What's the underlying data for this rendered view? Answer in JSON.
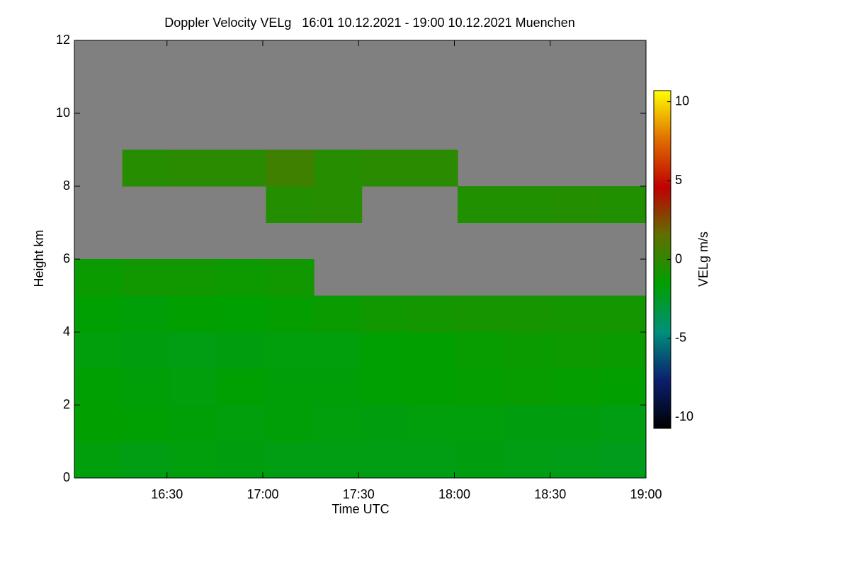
{
  "chart_data": {
    "type": "heatmap",
    "title": "Doppler Velocity VELg   16:01 10.12.2021 - 19:00 10.12.2021 Muenchen",
    "xlabel": "Time UTC",
    "ylabel": "Height km",
    "colorbar_label": "VELg m/s",
    "x": [
      "16:01",
      "16:16",
      "16:31",
      "16:46",
      "17:01",
      "17:16",
      "17:31",
      "17:46",
      "18:01",
      "18:16",
      "18:31",
      "18:46"
    ],
    "xlim": [
      "16:01",
      "19:00"
    ],
    "xticks": [
      "16:30",
      "17:00",
      "17:30",
      "18:00",
      "18:30",
      "19:00"
    ],
    "y": [
      0,
      1,
      2,
      3,
      4,
      5,
      6,
      7,
      8,
      9,
      10,
      11
    ],
    "ylim": [
      0,
      12
    ],
    "yticks": [
      0,
      2,
      4,
      6,
      8,
      10,
      12
    ],
    "values": [
      [
        -1.8,
        -2,
        -1.8,
        -1.9,
        -2,
        -2,
        -2,
        -2,
        -1.9,
        -2,
        -2.1,
        -2.2
      ],
      [
        -1.5,
        -1.6,
        -1.7,
        -1.8,
        -1.7,
        -1.8,
        -1.9,
        -1.8,
        -1.8,
        -1.9,
        -1.9,
        -2
      ],
      [
        -1.6,
        -1.7,
        -1.8,
        -1.6,
        -1.7,
        -1.7,
        -1.6,
        -1.5,
        -1.4,
        -1.3,
        -1.4,
        -1.5
      ],
      [
        -1.8,
        -1.9,
        -2,
        -1.9,
        -1.8,
        -1.8,
        -1.6,
        -1.5,
        -1.3,
        -1.2,
        -1.1,
        -1.2
      ],
      [
        -1.6,
        -1.7,
        -1.5,
        -1.6,
        -1.4,
        -1.2,
        -1,
        -0.9,
        -0.8,
        -0.8,
        -0.9,
        -0.9
      ],
      [
        -1.2,
        -1,
        -1,
        -1.1,
        -1,
        null,
        null,
        null,
        null,
        null,
        null,
        null
      ],
      [
        null,
        null,
        null,
        null,
        null,
        null,
        null,
        null,
        null,
        null,
        null,
        null
      ],
      [
        null,
        null,
        null,
        null,
        -0.4,
        -0.3,
        null,
        null,
        -0.5,
        -0.5,
        -0.4,
        -0.5
      ],
      [
        null,
        -0.3,
        -0.2,
        -0.2,
        0.5,
        -0.3,
        -0.2,
        -0.2,
        null,
        null,
        null,
        null
      ],
      [
        null,
        null,
        null,
        null,
        null,
        null,
        null,
        null,
        null,
        null,
        null,
        null
      ],
      [
        null,
        null,
        null,
        null,
        null,
        null,
        null,
        null,
        null,
        null,
        null,
        null
      ],
      [
        null,
        null,
        null,
        null,
        null,
        null,
        null,
        null,
        null,
        null,
        null,
        null
      ]
    ],
    "no_data_color": "#808080",
    "clim": [
      -10.7,
      10.7
    ],
    "cticks": [
      -10,
      -5,
      0,
      5,
      10
    ],
    "colormap": [
      "#000000",
      "#0b1f6e",
      "#00907a",
      "#00a000",
      "#607000",
      "#c00000",
      "#e07000",
      "#ffff00"
    ]
  }
}
